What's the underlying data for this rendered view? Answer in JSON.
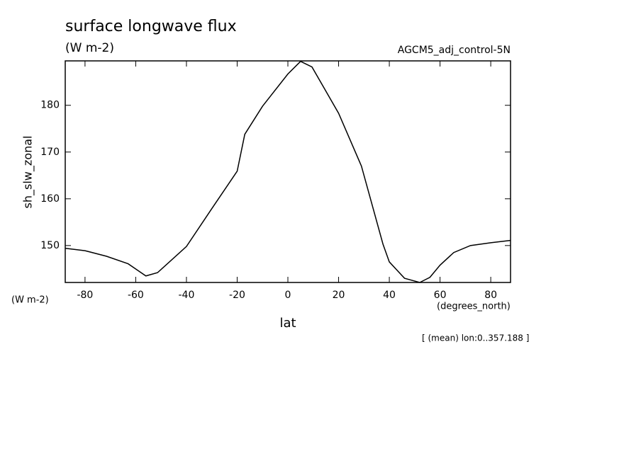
{
  "chart_data": {
    "type": "line",
    "title": "surface longwave flux",
    "subtitle": "(W m-2)",
    "run_label": "AGCM5_adj_control-5N",
    "y_label": "sh_slw_zonal",
    "y_unit": "(W m-2)",
    "x_unit": "(degrees_north)",
    "x_label": "lat",
    "note": "[ (mean) lon:0..357.188 ]",
    "xlim": [
      -87.8,
      87.8
    ],
    "ylim": [
      142.1,
      189.5
    ],
    "xticks": [
      -80,
      -60,
      -40,
      -20,
      0,
      20,
      40,
      60,
      80
    ],
    "yticks": [
      150,
      160,
      170,
      180
    ],
    "grid": false,
    "series": [
      {
        "color": "#000000",
        "x": [
          -87.7,
          -80,
          -71.5,
          -63,
          -56,
          -51.4,
          -40,
          -30,
          -20,
          -17,
          -10,
          0,
          5,
          9.5,
          20,
          29,
          37.5,
          40,
          46,
          52,
          56,
          60,
          65.4,
          72,
          80,
          87.7
        ],
        "values": [
          149.4,
          148.9,
          147.7,
          146.1,
          143.5,
          144.2,
          149.8,
          157.9,
          165.9,
          173.8,
          179.8,
          186.7,
          189.4,
          188.2,
          178.3,
          167.0,
          150.3,
          146.5,
          143.0,
          142.1,
          143.2,
          145.8,
          148.5,
          150.0,
          150.6,
          151.1
        ]
      }
    ]
  }
}
